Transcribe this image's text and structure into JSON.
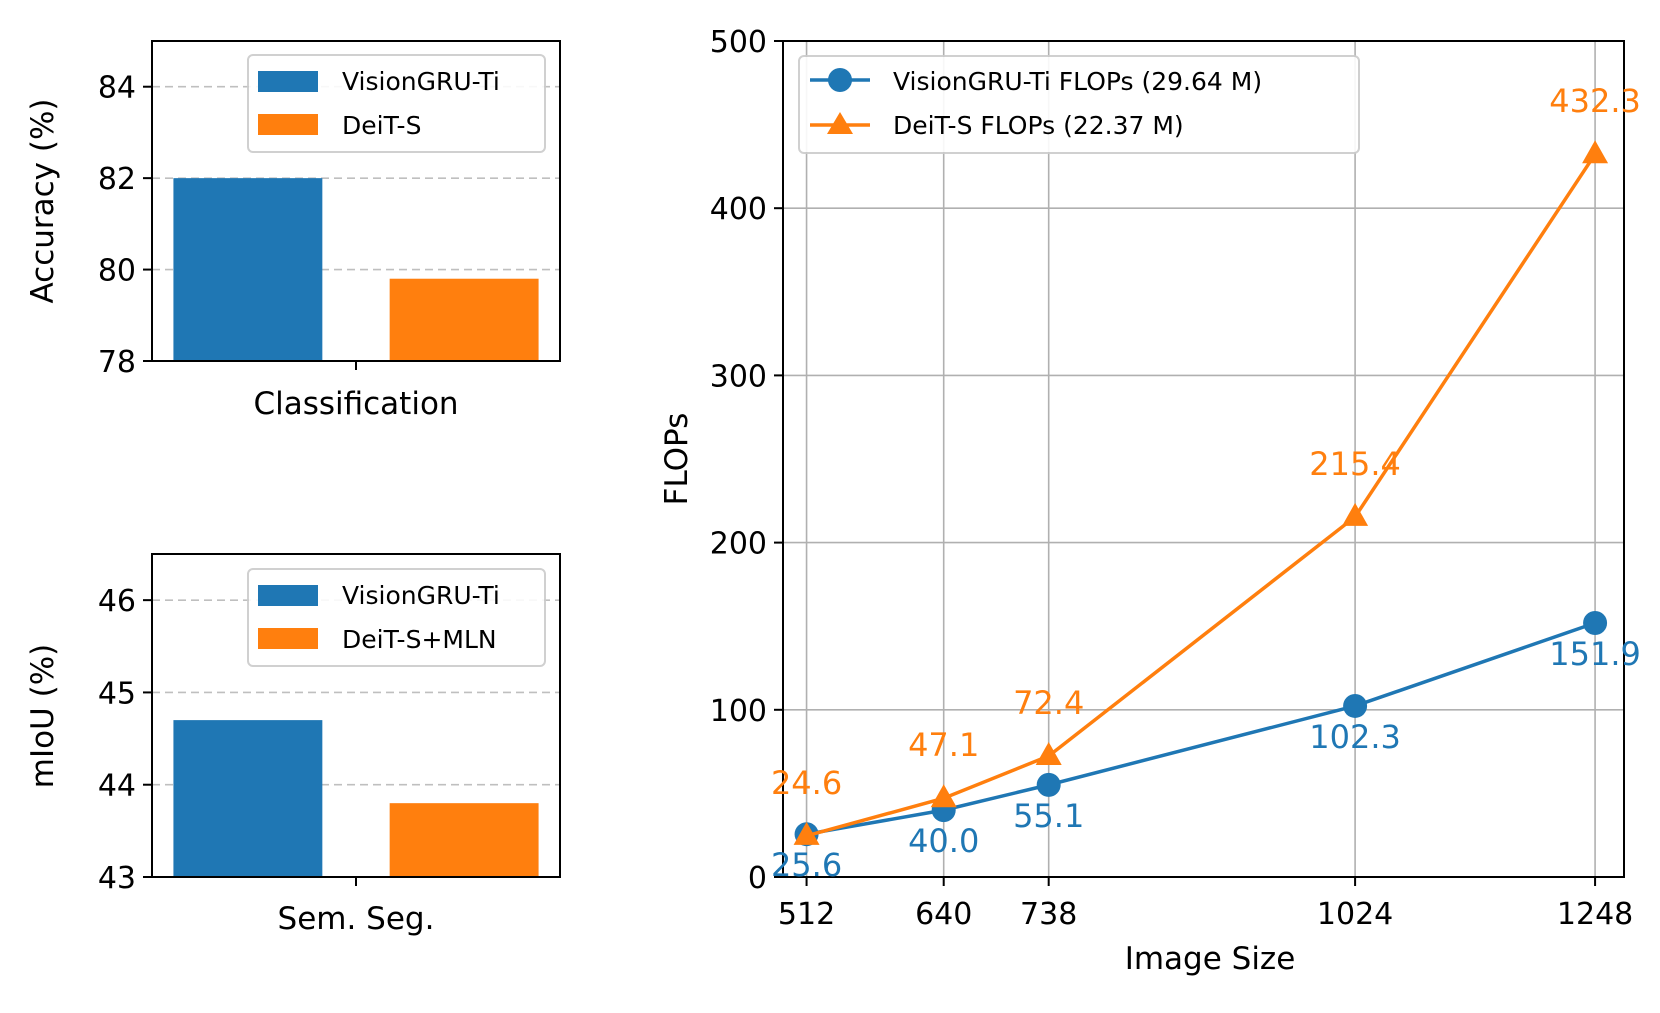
{
  "colors": {
    "blue": "#1f77b4",
    "orange": "#ff7f0e"
  },
  "chart_data": [
    {
      "type": "bar",
      "xlabel": "Classification",
      "ylabel": "Accuracy (%)",
      "ylim": [
        78,
        85
      ],
      "yticks": [
        78,
        80,
        82,
        84
      ],
      "grid": "y-dashed",
      "legend_position": "top-right",
      "series": [
        {
          "name": "VisionGRU-Ti",
          "value": 82.0,
          "color": "#1f77b4"
        },
        {
          "name": "DeiT-S",
          "value": 79.8,
          "color": "#ff7f0e"
        }
      ]
    },
    {
      "type": "bar",
      "xlabel": "Sem. Seg.",
      "ylabel": "mIoU (%)",
      "ylim": [
        43,
        46.5
      ],
      "yticks": [
        43,
        44,
        45,
        46
      ],
      "grid": "y-dashed",
      "legend_position": "top-right",
      "series": [
        {
          "name": "VisionGRU-Ti",
          "value": 44.7,
          "color": "#1f77b4"
        },
        {
          "name": "DeiT-S+MLN",
          "value": 43.8,
          "color": "#ff7f0e"
        }
      ]
    },
    {
      "type": "line",
      "xlabel": "Image Size",
      "ylabel": "FLOPs",
      "x": [
        512,
        640,
        738,
        1024,
        1248
      ],
      "xlim": [
        490,
        1275
      ],
      "ylim": [
        0,
        500
      ],
      "yticks": [
        0,
        100,
        200,
        300,
        400,
        500
      ],
      "grid": "both",
      "legend_position": "top-left",
      "series": [
        {
          "name": "VisionGRU-Ti FLOPs (29.64 M)",
          "marker": "circle",
          "color": "#1f77b4",
          "values": [
            25.6,
            40.0,
            55.1,
            102.3,
            151.9
          ],
          "labels": [
            "25.6",
            "40.0",
            "55.1",
            "102.3",
            "151.9"
          ]
        },
        {
          "name": "DeiT-S FLOPs (22.37 M)",
          "marker": "triangle",
          "color": "#ff7f0e",
          "values": [
            24.6,
            47.1,
            72.4,
            215.4,
            432.3
          ],
          "labels": [
            "24.6",
            "47.1",
            "72.4",
            "215.4",
            "432.3"
          ]
        }
      ]
    }
  ]
}
